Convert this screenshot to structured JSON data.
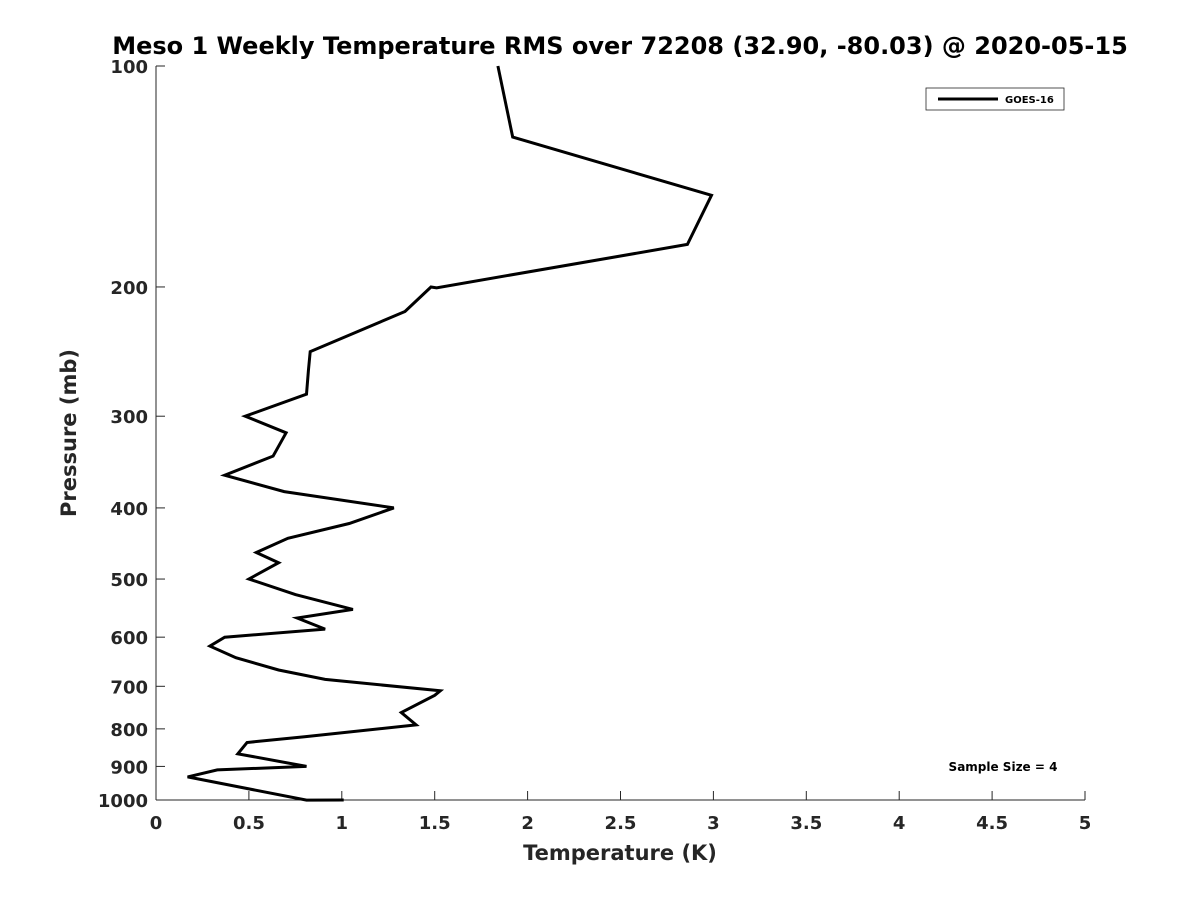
{
  "chart_data": {
    "type": "line",
    "title": "Meso 1 Weekly Temperature RMS over 72208 (32.90, -80.03) @ 2020-05-15",
    "xlabel": "Temperature (K)",
    "ylabel": "Pressure (mb)",
    "xlim": [
      0,
      5
    ],
    "ylim": [
      100,
      1000
    ],
    "y_scale": "log",
    "y_reversed": true,
    "grid": false,
    "legend_position": "top-right",
    "x_ticks": [
      0,
      0.5,
      1,
      1.5,
      2,
      2.5,
      3,
      3.5,
      4,
      4.5,
      5
    ],
    "x_tick_labels": [
      "0",
      "0.5",
      "1",
      "1.5",
      "2",
      "2.5",
      "3",
      "3.5",
      "4",
      "4.5",
      "5"
    ],
    "y_ticks": [
      100,
      200,
      300,
      400,
      500,
      600,
      700,
      800,
      900,
      1000
    ],
    "y_tick_labels": [
      "100",
      "200",
      "300",
      "400",
      "500",
      "600",
      "700",
      "800",
      "900",
      "1000"
    ],
    "series": [
      {
        "name": "GOES-16",
        "color": "#000000",
        "points": [
          [
            1.84,
            100
          ],
          [
            1.92,
            125
          ],
          [
            2.99,
            150
          ],
          [
            2.86,
            175
          ],
          [
            1.51,
            200.5
          ],
          [
            1.48,
            200
          ],
          [
            1.34,
            216
          ],
          [
            0.83,
            245
          ],
          [
            0.82,
            260
          ],
          [
            0.81,
            280
          ],
          [
            0.48,
            300
          ],
          [
            0.7,
            316
          ],
          [
            0.63,
            340
          ],
          [
            0.37,
            361
          ],
          [
            0.69,
            380
          ],
          [
            1.28,
            400
          ],
          [
            1.04,
            420
          ],
          [
            0.71,
            440
          ],
          [
            0.54,
            460
          ],
          [
            0.66,
            475
          ],
          [
            0.5,
            500
          ],
          [
            0.75,
            525
          ],
          [
            1.06,
            550
          ],
          [
            0.76,
            565
          ],
          [
            0.91,
            585
          ],
          [
            0.37,
            600
          ],
          [
            0.29,
            617
          ],
          [
            0.43,
            640
          ],
          [
            0.66,
            665
          ],
          [
            0.91,
            685
          ],
          [
            1.53,
            710
          ],
          [
            1.5,
            720
          ],
          [
            1.32,
            760
          ],
          [
            1.4,
            790
          ],
          [
            0.8,
            820
          ],
          [
            0.49,
            835
          ],
          [
            0.44,
            865
          ],
          [
            0.81,
            900
          ],
          [
            0.33,
            910
          ],
          [
            0.17,
            930
          ],
          [
            0.81,
            1000.2
          ],
          [
            1.01,
            1000
          ]
        ]
      }
    ],
    "annotation": "Sample Size = 4"
  }
}
